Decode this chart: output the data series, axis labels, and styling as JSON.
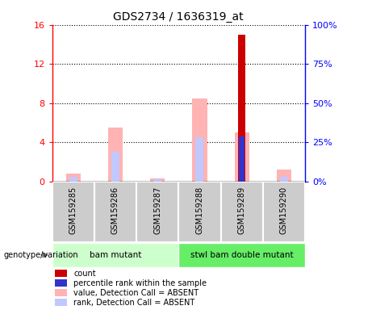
{
  "title": "GDS2734 / 1636319_at",
  "samples": [
    "GSM159285",
    "GSM159286",
    "GSM159287",
    "GSM159288",
    "GSM159289",
    "GSM159290"
  ],
  "count_values": [
    0,
    0,
    0,
    0,
    15.0,
    0
  ],
  "percentile_values": [
    0,
    0,
    0,
    0,
    28.5,
    0
  ],
  "value_absent": [
    0.8,
    5.5,
    0.3,
    8.5,
    5.0,
    1.2
  ],
  "rank_absent": [
    0.5,
    3.0,
    0.2,
    4.5,
    0,
    0.5
  ],
  "ylim_left": [
    0,
    16
  ],
  "ylim_right": [
    0,
    100
  ],
  "yticks_left": [
    0,
    4,
    8,
    12,
    16
  ],
  "yticks_right": [
    0,
    25,
    50,
    75,
    100
  ],
  "ytick_labels_right": [
    "0%",
    "25%",
    "50%",
    "75%",
    "100%"
  ],
  "group1_label": "bam mutant",
  "group2_label": "stwl bam double mutant",
  "color_count": "#cc0000",
  "color_percentile": "#3333cc",
  "color_value_absent": "#ffb3b3",
  "color_rank_absent": "#c0c8ff",
  "color_group1": "#ccffcc",
  "color_group2": "#66ee66",
  "color_sample_box": "#cccccc",
  "bar_width": 0.35,
  "legend_labels": [
    "count",
    "percentile rank within the sample",
    "value, Detection Call = ABSENT",
    "rank, Detection Call = ABSENT"
  ],
  "xlabel_genotype": "genotype/variation"
}
